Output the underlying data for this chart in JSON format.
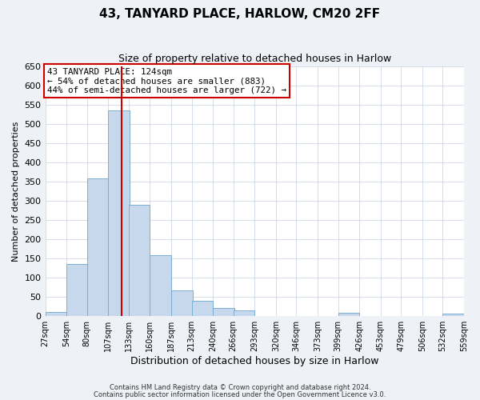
{
  "title": "43, TANYARD PLACE, HARLOW, CM20 2FF",
  "subtitle": "Size of property relative to detached houses in Harlow",
  "xlabel": "Distribution of detached houses by size in Harlow",
  "ylabel": "Number of detached properties",
  "bar_left_edges": [
    27,
    54,
    80,
    107,
    133,
    160,
    187,
    213,
    240,
    266,
    293,
    320,
    346,
    373,
    399,
    426,
    453,
    479,
    506,
    532
  ],
  "bar_heights": [
    10,
    135,
    358,
    535,
    290,
    157,
    67,
    40,
    20,
    14,
    0,
    0,
    0,
    0,
    8,
    0,
    0,
    0,
    0,
    5
  ],
  "bin_width": 27,
  "bar_color": "#c8d8ec",
  "bar_edge_color": "#7aaed0",
  "tick_labels": [
    "27sqm",
    "54sqm",
    "80sqm",
    "107sqm",
    "133sqm",
    "160sqm",
    "187sqm",
    "213sqm",
    "240sqm",
    "266sqm",
    "293sqm",
    "320sqm",
    "346sqm",
    "373sqm",
    "399sqm",
    "426sqm",
    "453sqm",
    "479sqm",
    "506sqm",
    "532sqm",
    "559sqm"
  ],
  "vline_x": 124,
  "vline_color": "#cc0000",
  "ylim": [
    0,
    650
  ],
  "yticks": [
    0,
    50,
    100,
    150,
    200,
    250,
    300,
    350,
    400,
    450,
    500,
    550,
    600,
    650
  ],
  "annotation_text": "43 TANYARD PLACE: 124sqm\n← 54% of detached houses are smaller (883)\n44% of semi-detached houses are larger (722) →",
  "annotation_box_color": "#ffffff",
  "annotation_box_edge": "#cc0000",
  "footer_line1": "Contains HM Land Registry data © Crown copyright and database right 2024.",
  "footer_line2": "Contains public sector information licensed under the Open Government Licence v3.0.",
  "background_color": "#eef2f7",
  "plot_background": "#ffffff",
  "grid_color": "#c5d2e0",
  "title_fontsize": 11,
  "subtitle_fontsize": 9,
  "ylabel_fontsize": 8,
  "xlabel_fontsize": 9
}
